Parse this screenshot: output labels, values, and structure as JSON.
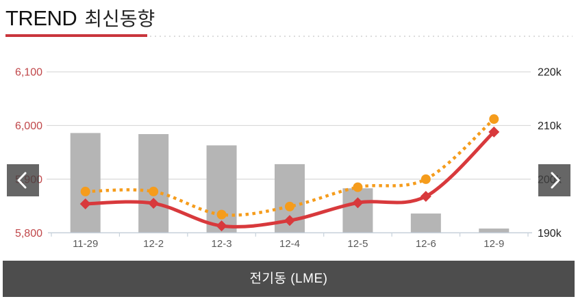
{
  "header": {
    "title_main": "TREND",
    "title_sub": "최신동향"
  },
  "footer": {
    "chart_label": "전기동 (LME)"
  },
  "chart_data": {
    "type": "combo",
    "title": "전기동 (LME)",
    "categories": [
      "11-29",
      "12-2",
      "12-3",
      "12-4",
      "12-5",
      "12-6",
      "12-9"
    ],
    "series": [
      {
        "name": "volume-bars",
        "type": "bar",
        "axis": "right",
        "color": "#b5b5b5",
        "values": [
          208.6,
          208.4,
          206.3,
          202.8,
          198.3,
          193.6,
          190.8
        ]
      },
      {
        "name": "solid-price-line",
        "type": "line",
        "line_style": "solid",
        "marker": "diamond",
        "axis": "left",
        "color": "#d8393c",
        "values": [
          5854,
          5855,
          5813,
          5823,
          5856,
          5868,
          5988
        ]
      },
      {
        "name": "dotted-price-line",
        "type": "line",
        "line_style": "dotted",
        "marker": "circle",
        "axis": "left",
        "color": "#f59c1c",
        "values": [
          5877,
          5877,
          5834,
          5849,
          5885,
          5900,
          6012
        ]
      }
    ],
    "left_axis": {
      "min": 5800,
      "max": 6100,
      "tick_values": [
        6100,
        6000,
        5900,
        5800
      ],
      "tick_labels": [
        "6,100",
        "6,000",
        "5,900",
        "5,800"
      ],
      "label_color": "#c0474a"
    },
    "right_axis": {
      "min": 190,
      "max": 220,
      "tick_values": [
        220,
        210,
        200,
        190
      ],
      "tick_labels": [
        "220k",
        "210k",
        "200k",
        "190k"
      ],
      "label_color": "#1f1f1f"
    },
    "x_axis": {
      "label_color": "#595959"
    },
    "grid": true,
    "legend_position": "none"
  },
  "colors": {
    "accent_red": "#c9353c",
    "grid_line": "#d9d9d9",
    "axis_line": "#c6d0da",
    "footer_bg": "#4d4d4d"
  }
}
